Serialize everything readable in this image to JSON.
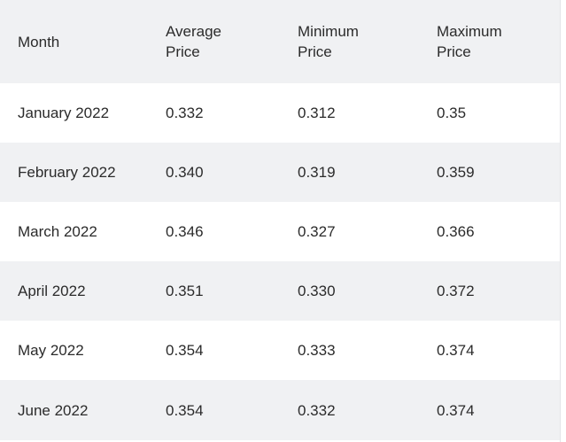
{
  "table": {
    "headers": [
      [
        "Month"
      ],
      [
        "Average",
        "Price"
      ],
      [
        "Minimum",
        "Price"
      ],
      [
        "Maximum",
        "Price"
      ]
    ],
    "rows": [
      [
        "January 2022",
        "0.332",
        "0.312",
        "0.35"
      ],
      [
        "February 2022",
        "0.340",
        "0.319",
        "0.359"
      ],
      [
        "March 2022",
        "0.346",
        "0.327",
        "0.366"
      ],
      [
        "April 2022",
        "0.351",
        "0.330",
        "0.372"
      ],
      [
        "May 2022",
        "0.354",
        "0.333",
        "0.374"
      ],
      [
        "June 2022",
        "0.354",
        "0.332",
        "0.374"
      ]
    ]
  },
  "colors": {
    "header_bg": "#f0f1f3",
    "stripe_bg": "#f0f1f3",
    "row_bg": "#ffffff",
    "text": "#2b2b2b"
  }
}
